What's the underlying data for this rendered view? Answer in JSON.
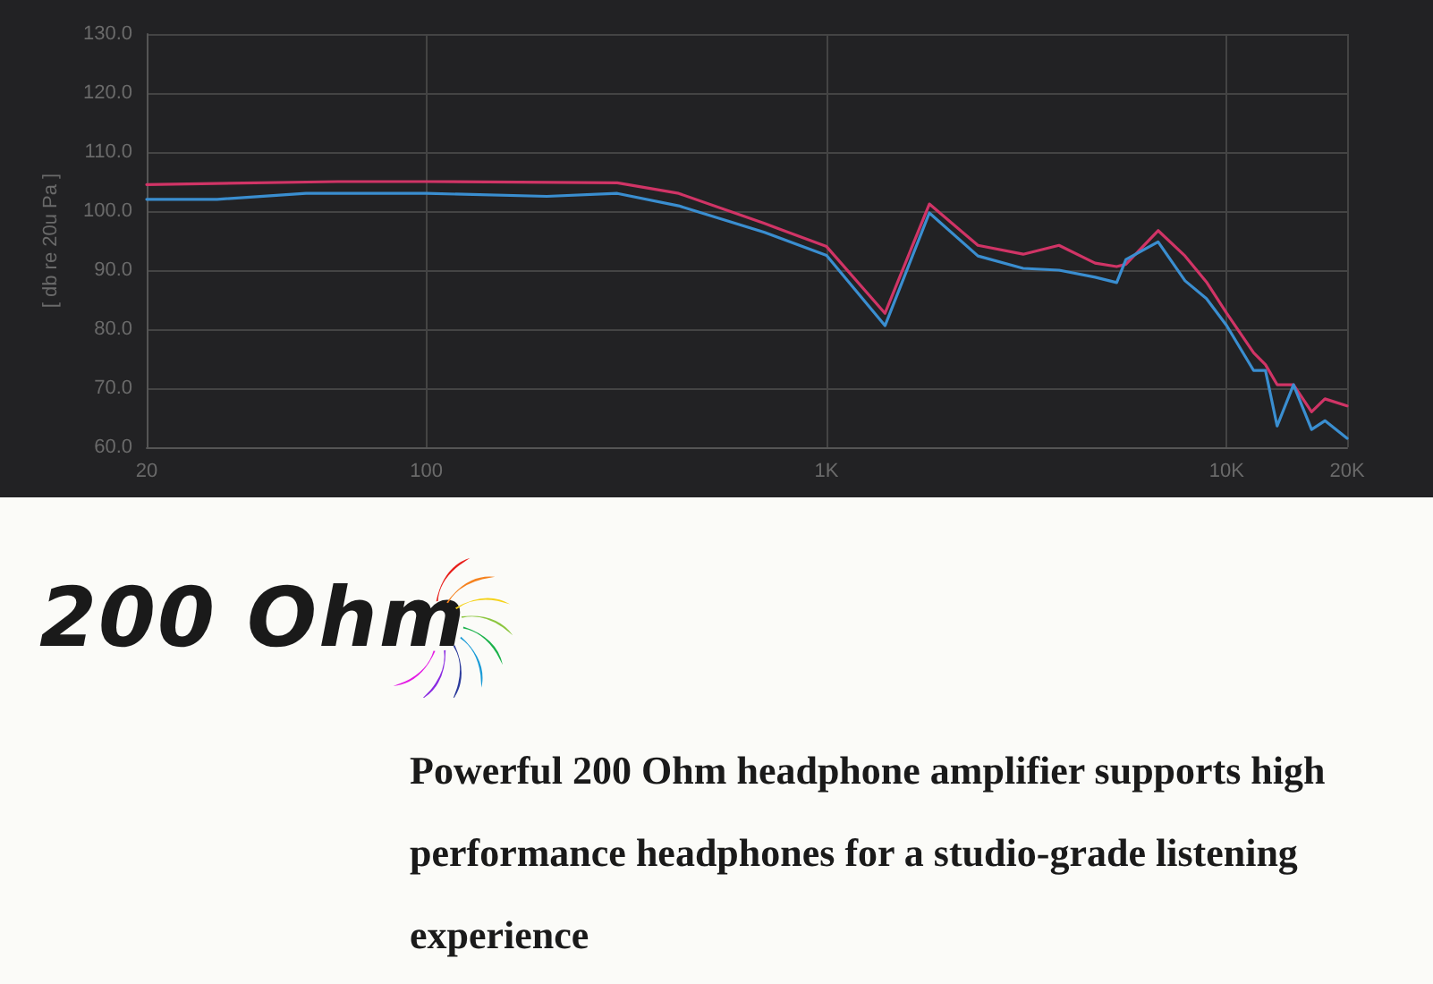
{
  "chart_data": {
    "type": "line",
    "ylabel": "[ db re 20u Pa ]",
    "xlim": [
      20,
      20000
    ],
    "xticks": [
      20,
      100,
      {
        "value": 1000,
        "label": "1K"
      },
      {
        "value": 10000,
        "label": "10K"
      },
      {
        "value": 20000,
        "label": "20K"
      }
    ],
    "ylim": [
      60,
      130
    ],
    "yticks": [
      {
        "value": 60,
        "label": "60.0"
      },
      {
        "value": 70,
        "label": "70.0"
      },
      {
        "value": 80,
        "label": "80.0"
      },
      {
        "value": 90,
        "label": "90.0"
      },
      {
        "value": 100,
        "label": "100.0"
      },
      {
        "value": 110,
        "label": "110.0"
      },
      {
        "value": 120,
        "label": "120.0"
      },
      {
        "value": 130,
        "label": "130.0"
      }
    ],
    "log": "x",
    "grid": true,
    "marker": "none",
    "line_style": "solid",
    "series": [
      {
        "color": "#d03466",
        "x": [
          20,
          60,
          100,
          300,
          427,
          700,
          1000,
          1400,
          1807,
          2390,
          3100,
          3810,
          4690,
          5310,
          5600,
          6740,
          7870,
          8900,
          10000,
          11680,
          12500,
          13370,
          14690,
          16300,
          17600,
          20000
        ],
        "values": [
          104.5,
          105,
          105,
          104.8,
          103,
          97.9,
          94,
          82.7,
          101.2,
          94.2,
          92.7,
          94.2,
          91.2,
          90.6,
          91,
          96.7,
          92.4,
          88,
          82.7,
          76,
          74,
          70.6,
          70.6,
          66,
          68.2,
          67
        ]
      },
      {
        "color": "#3a8ed0",
        "x": [
          20,
          30,
          50,
          100,
          200,
          300,
          427,
          700,
          1000,
          1400,
          1807,
          2390,
          3100,
          3810,
          4690,
          5310,
          5600,
          6740,
          7870,
          8900,
          10000,
          11680,
          12500,
          13370,
          14690,
          16300,
          17600,
          20000
        ],
        "values": [
          102,
          102,
          103,
          103,
          102.5,
          103,
          100.9,
          96.4,
          92.5,
          80.6,
          99.7,
          92.4,
          90.3,
          90,
          88.8,
          87.9,
          91.8,
          94.8,
          88.2,
          85.2,
          80.6,
          73,
          73,
          63.6,
          70.6,
          63,
          64.5,
          61.5
        ]
      }
    ],
    "annotations": [
      "200 Ohm",
      "Powerful 200 Ohm headphone amplifier supports high performance headphones for a studio-grade listening experience"
    ]
  }
}
